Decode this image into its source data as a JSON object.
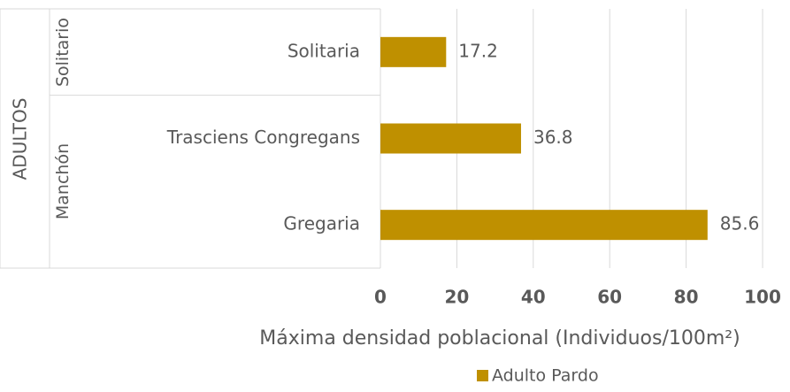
{
  "chart_data": {
    "type": "bar",
    "orientation": "horizontal",
    "outer_label": "ADULTOS",
    "category_groups": [
      {
        "name": "Solitario",
        "members": [
          "Solitaria"
        ]
      },
      {
        "name": "Manchón",
        "members": [
          "Trasciens Congregans",
          "Gregaria"
        ]
      }
    ],
    "categories": [
      "Solitaria",
      "Trasciens Congregans",
      "Gregaria"
    ],
    "series": [
      {
        "name": "Adulto Pardo",
        "color": "#bf9000",
        "values": [
          17.2,
          36.8,
          85.6
        ]
      }
    ],
    "xlabel": "Máxima densidad poblacional (Individuos/100m²)",
    "xlim": [
      0,
      100
    ],
    "xticks": [
      0,
      20,
      40,
      60,
      80,
      100
    ],
    "grid": true,
    "legend": "bottom"
  }
}
